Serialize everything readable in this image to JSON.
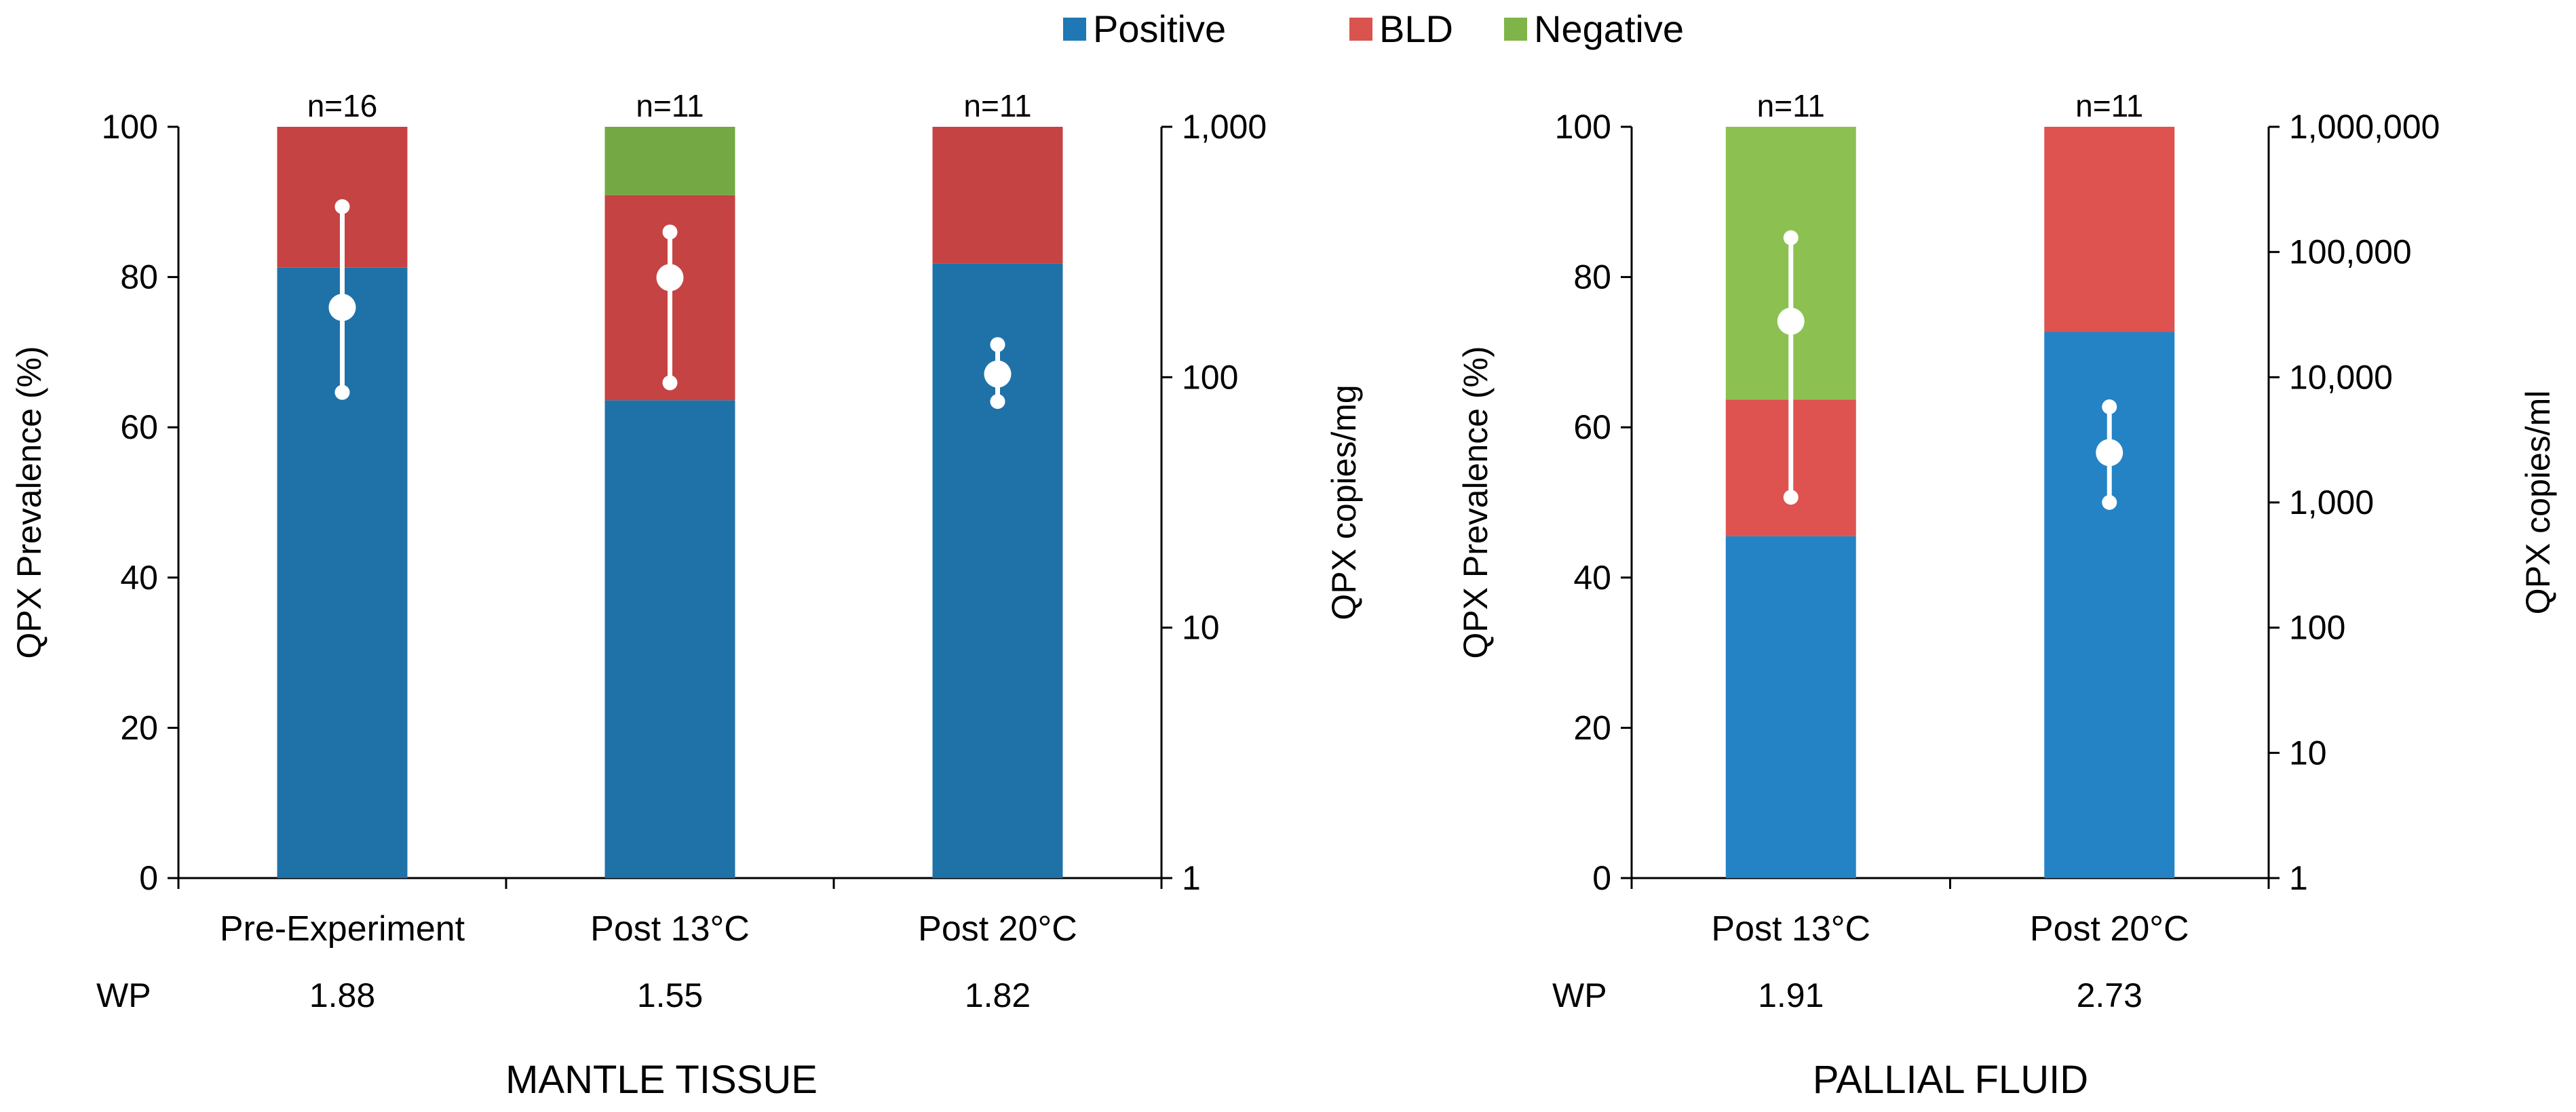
{
  "legend": [
    {
      "label": "Positive",
      "color": "#1f77b4"
    },
    {
      "label": "BLD",
      "color": "#d9534f"
    },
    {
      "label": "Negative",
      "color": "#7fb548"
    }
  ],
  "chart_data": [
    {
      "type": "bar",
      "stacked": true,
      "title": "MANTLE TISSUE",
      "ylabel": "QPX Prevalence (%)",
      "y2label": "QPX copies/mg",
      "ylim": [
        0,
        100
      ],
      "yticks": [
        "0",
        "20",
        "40",
        "60",
        "80",
        "100"
      ],
      "y2scale": "log",
      "y2lim": [
        1,
        1000
      ],
      "y2ticks": [
        "1",
        "10",
        "100",
        "1,000"
      ],
      "categories": [
        "Pre-Experiment",
        "Post 13°C",
        "Post 20°C"
      ],
      "n_labels": [
        "n=16",
        "n=11",
        "n=11"
      ],
      "wp_label": "WP",
      "wp_values": [
        "1.88",
        "1.55",
        "1.82"
      ],
      "series": [
        {
          "name": "Positive",
          "values": [
            81.25,
            63.6,
            81.8
          ],
          "color": "#1f72a8"
        },
        {
          "name": "BLD",
          "values": [
            18.75,
            27.3,
            18.2
          ],
          "color": "#c64343"
        },
        {
          "name": "Negative",
          "values": [
            0,
            9.1,
            0
          ],
          "color": "#74a844"
        }
      ],
      "copies": [
        {
          "mean": 190,
          "low": 87,
          "high": 480
        },
        {
          "mean": 250,
          "low": 95,
          "high": 380
        },
        {
          "mean": 103,
          "low": 80,
          "high": 135
        }
      ],
      "grid": false
    },
    {
      "type": "bar",
      "stacked": true,
      "title": "PALLIAL FLUID",
      "ylabel": "QPX Prevalence (%)",
      "y2label": "QPX copies/ml",
      "ylim": [
        0,
        100
      ],
      "yticks": [
        "0",
        "20",
        "40",
        "60",
        "80",
        "100"
      ],
      "y2scale": "log",
      "y2lim": [
        1,
        1000000
      ],
      "y2ticks": [
        "1",
        "10",
        "100",
        "1,000",
        "10,000",
        "100,000",
        "1,000,000"
      ],
      "categories": [
        "Post 13°C",
        "Post 20°C"
      ],
      "n_labels": [
        "n=11",
        "n=11"
      ],
      "wp_label": "WP",
      "wp_values": [
        "1.91",
        "2.73"
      ],
      "series": [
        {
          "name": "Positive",
          "values": [
            45.5,
            72.7
          ],
          "color": "#2483c5"
        },
        {
          "name": "BLD",
          "values": [
            18.2,
            27.3
          ],
          "color": "#de5250"
        },
        {
          "name": "Negative",
          "values": [
            36.3,
            0
          ],
          "color": "#8cc152"
        }
      ],
      "copies": [
        {
          "mean": 28000,
          "low": 1100,
          "high": 130000
        },
        {
          "mean": 2500,
          "low": 1000,
          "high": 5800
        }
      ],
      "grid": false
    }
  ]
}
